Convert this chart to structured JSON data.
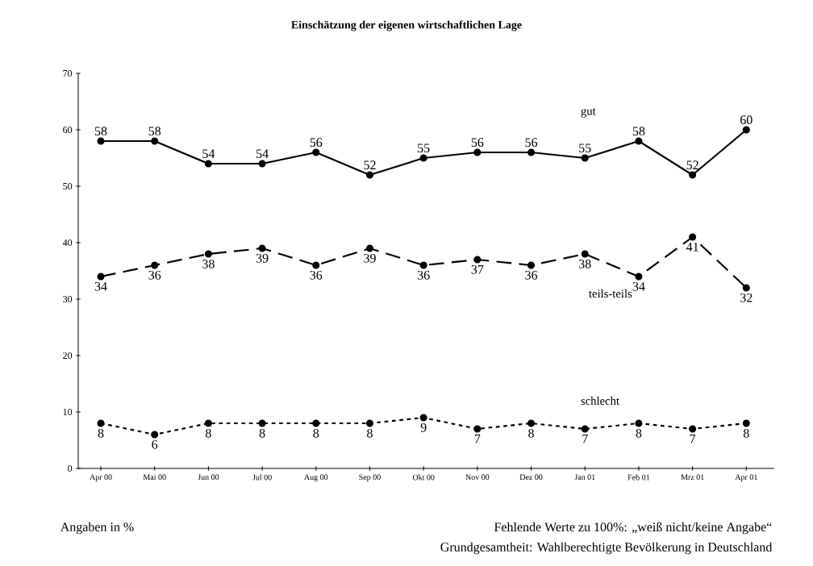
{
  "chart_data": {
    "type": "line",
    "title": "Einschätzung der eigenen wirtschaftlichen Lage",
    "categories": [
      "Apr 00",
      "Mai 00",
      "Jun 00",
      "Jul 00",
      "Aug 00",
      "Sep 00",
      "Okt 00",
      "Nov 00",
      "Dez 00",
      "Jan 01",
      "Feb 01",
      "Mrz 01",
      "Apr 01"
    ],
    "series": [
      {
        "name": "gut",
        "color": "#000000",
        "line_style": "solid",
        "values": [
          58,
          58,
          54,
          54,
          56,
          52,
          55,
          56,
          56,
          55,
          58,
          52,
          60
        ]
      },
      {
        "name": "teils-teils",
        "color": "#000000",
        "line_style": "dashed",
        "values": [
          34,
          36,
          38,
          39,
          36,
          39,
          36,
          37,
          36,
          38,
          34,
          41,
          32
        ]
      },
      {
        "name": "schlecht",
        "color": "#000000",
        "line_style": "dotted",
        "values": [
          8,
          6,
          8,
          8,
          8,
          8,
          9,
          7,
          8,
          7,
          8,
          7,
          8
        ]
      }
    ],
    "ylim": [
      0,
      70
    ],
    "yticks": [
      0,
      10,
      20,
      30,
      40,
      50,
      60,
      70
    ],
    "marker": "circle",
    "data_labels": true,
    "grid": false,
    "annotations": [
      "Angaben in %",
      "Fehlende Werte zu 100%: „weiß nicht/keine Angabe“",
      "Grundgesamtheit: Wahlberechtigte Bevölkerung in Deutschland"
    ]
  }
}
